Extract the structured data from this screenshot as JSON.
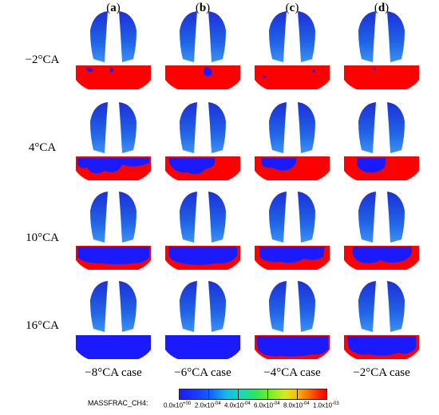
{
  "columns": [
    {
      "letter": "a",
      "case": "−8°CA case"
    },
    {
      "letter": "b",
      "case": "−6°CA case"
    },
    {
      "letter": "c",
      "case": "−4°CA case"
    },
    {
      "letter": "d",
      "case": "−2°CA case"
    }
  ],
  "rows": [
    {
      "label": "−2°CA"
    },
    {
      "label": "4°CA"
    },
    {
      "label": "10°CA"
    },
    {
      "label": "16°CA"
    }
  ],
  "legend": {
    "title": "MASSFRAC_CH4:",
    "ticks": [
      {
        "base": "0.0x10",
        "exp": "+00"
      },
      {
        "base": "2.0x10",
        "exp": "-04"
      },
      {
        "base": "4.0x10",
        "exp": "-04"
      },
      {
        "base": "6.0x10",
        "exp": "-04"
      },
      {
        "base": "8.0x10",
        "exp": "-04"
      },
      {
        "base": "1.0x10",
        "exp": "-03"
      }
    ],
    "colors": {
      "low": "#1a1aff",
      "high": "#ff0000",
      "mid": "#2ee65a"
    }
  }
}
